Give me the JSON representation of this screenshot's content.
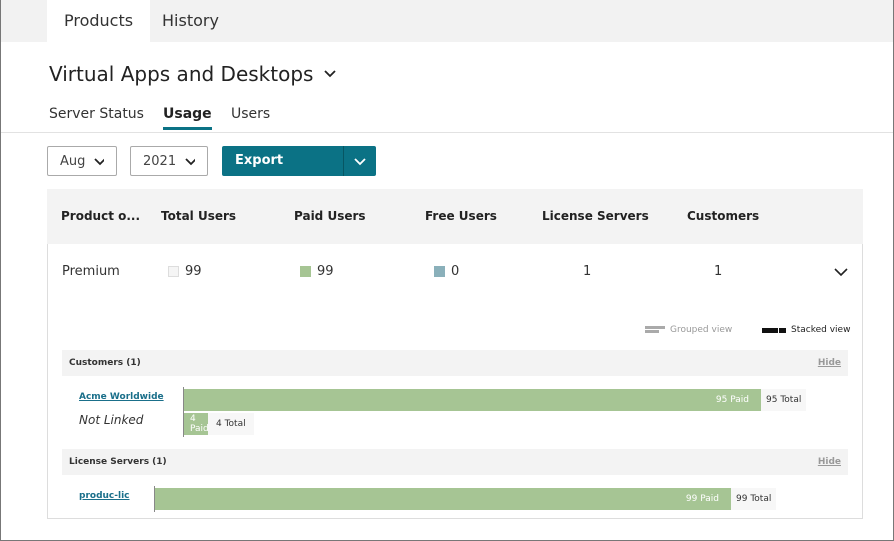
{
  "tabs": [
    {
      "label": "Products",
      "active": true
    },
    {
      "label": "History",
      "active": false
    }
  ],
  "title": "Virtual Apps and Desktops",
  "subtabs": [
    {
      "label": "Server Status"
    },
    {
      "label": "Usage",
      "active": true
    },
    {
      "label": "Users"
    }
  ],
  "filters": {
    "month": "Aug",
    "year": "2021",
    "export_label": "Export"
  },
  "table": {
    "headers": [
      "Product o...",
      "Total Users",
      "Paid Users",
      "Free Users",
      "License Servers",
      "Customers"
    ],
    "row": {
      "product": "Premium",
      "total_users": "99",
      "paid_users": "99",
      "free_users": "0",
      "license_servers": "1",
      "customers": "1"
    }
  },
  "colors": {
    "accent": "#0b7285",
    "paid": "#a6c594",
    "free": "#8ab0ba",
    "total": "#f5f5f5"
  },
  "legend": {
    "grouped": "Grouped view",
    "stacked": "Stacked view"
  },
  "customers": {
    "header": "Customers (1)",
    "hide": "Hide",
    "items": [
      {
        "name": "Acme Worldwide",
        "paid": 95,
        "total": 95,
        "paid_label": "95 Paid",
        "total_label": "95 Total"
      },
      {
        "name": "Not Linked",
        "paid": 4,
        "total": 4,
        "paid_label": "4 Paid",
        "total_label": "4 Total"
      }
    ]
  },
  "license_servers": {
    "header": "License Servers (1)",
    "hide": "Hide",
    "items": [
      {
        "name": "produc-lic",
        "paid": 99,
        "total": 99,
        "paid_label": "99 Paid",
        "total_label": "99 Total"
      }
    ]
  }
}
